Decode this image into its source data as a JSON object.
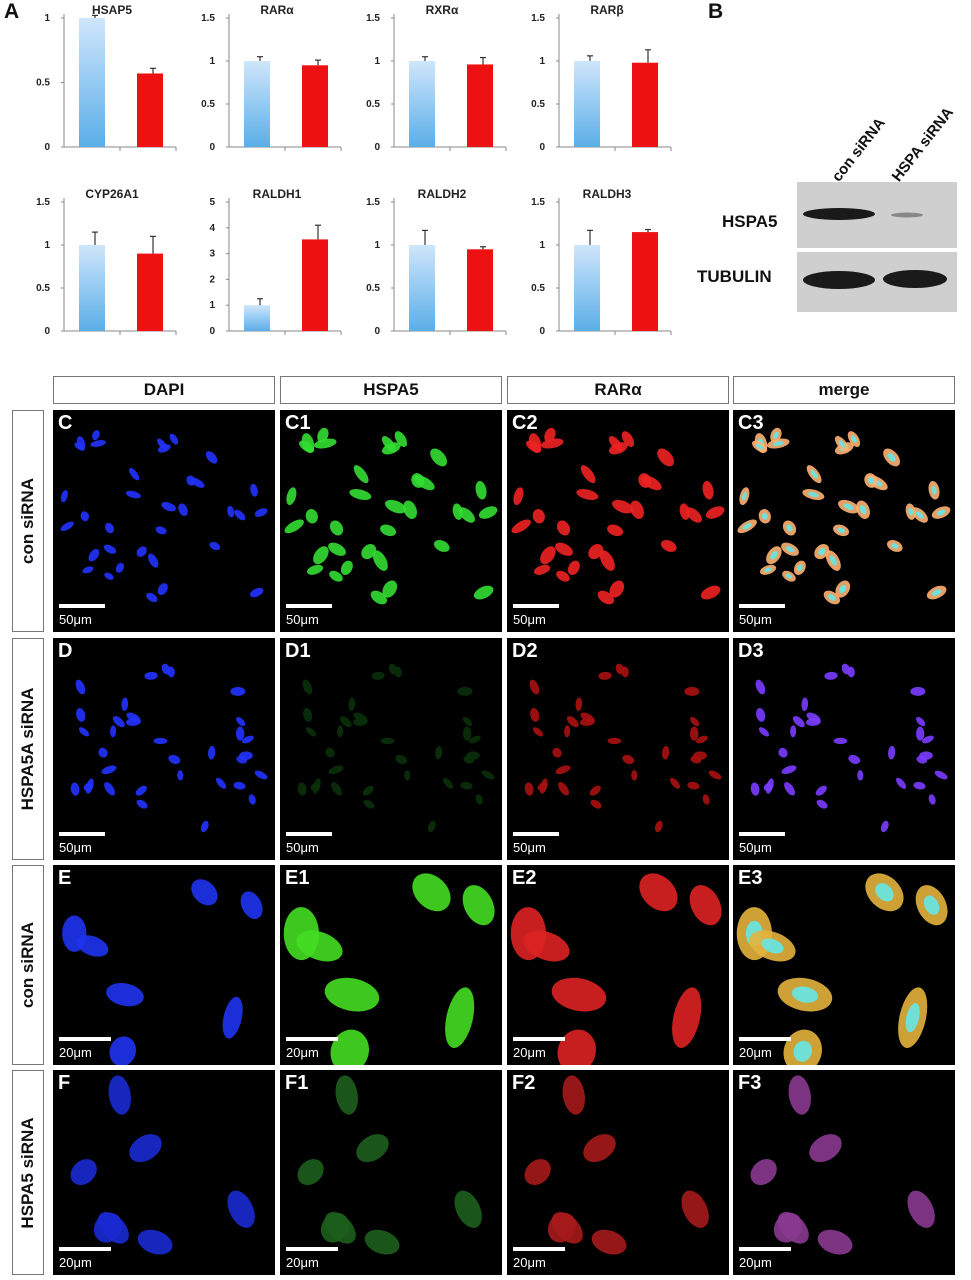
{
  "panel_letters": {
    "a": "A",
    "b": "B"
  },
  "chart_data": [
    {
      "type": "bar",
      "title": "HSAP5",
      "ylim": [
        0,
        1
      ],
      "yticks": [
        "0",
        "0.5",
        "1"
      ],
      "values": [
        1.0,
        0.57
      ],
      "errors": [
        0.02,
        0.04
      ],
      "colors": [
        "#5aaee8",
        "#ee1111"
      ]
    },
    {
      "type": "bar",
      "title": "RARα",
      "ylim": [
        0,
        1.5
      ],
      "yticks": [
        "0",
        "0.5",
        "1",
        "1.5"
      ],
      "values": [
        1.0,
        0.95
      ],
      "errors": [
        0.05,
        0.06
      ],
      "colors": [
        "#5aaee8",
        "#ee1111"
      ]
    },
    {
      "type": "bar",
      "title": "RXRα",
      "ylim": [
        0,
        1.5
      ],
      "yticks": [
        "0",
        "0.5",
        "1",
        "1.5"
      ],
      "values": [
        1.0,
        0.96
      ],
      "errors": [
        0.05,
        0.08
      ],
      "colors": [
        "#5aaee8",
        "#ee1111"
      ]
    },
    {
      "type": "bar",
      "title": "RARβ",
      "ylim": [
        0,
        1.5
      ],
      "yticks": [
        "0",
        "0.5",
        "1",
        "1.5"
      ],
      "values": [
        1.0,
        0.98
      ],
      "errors": [
        0.06,
        0.15
      ],
      "colors": [
        "#5aaee8",
        "#ee1111"
      ]
    },
    {
      "type": "bar",
      "title": "CYP26A1",
      "ylim": [
        0,
        1.5
      ],
      "yticks": [
        "0",
        "0.5",
        "1",
        "1.5"
      ],
      "values": [
        1.0,
        0.9
      ],
      "errors": [
        0.15,
        0.2
      ],
      "colors": [
        "#5aaee8",
        "#ee1111"
      ]
    },
    {
      "type": "bar",
      "title": "RALDH1",
      "ylim": [
        0,
        5
      ],
      "yticks": [
        "0",
        "1",
        "2",
        "3",
        "4",
        "5"
      ],
      "values": [
        1.0,
        3.55
      ],
      "errors": [
        0.25,
        0.55
      ],
      "colors": [
        "#5aaee8",
        "#ee1111"
      ]
    },
    {
      "type": "bar",
      "title": "RALDH2",
      "ylim": [
        0,
        1.5
      ],
      "yticks": [
        "0",
        "0.5",
        "1",
        "1.5"
      ],
      "values": [
        1.0,
        0.95
      ],
      "errors": [
        0.17,
        0.03
      ],
      "colors": [
        "#5aaee8",
        "#ee1111"
      ]
    },
    {
      "type": "bar",
      "title": "RALDH3",
      "ylim": [
        0,
        1.5
      ],
      "yticks": [
        "0",
        "0.5",
        "1",
        "1.5"
      ],
      "values": [
        1.0,
        1.15
      ],
      "errors": [
        0.17,
        0.03
      ],
      "colors": [
        "#5aaee8",
        "#ee1111"
      ]
    }
  ],
  "blot": {
    "lanes": [
      "con siRNA",
      "HSPA siRNA"
    ],
    "rows": [
      "HSPA5",
      "TUBULIN"
    ]
  },
  "columns": [
    "DAPI",
    "HSPA5",
    "RARα",
    "merge"
  ],
  "rows": [
    {
      "label": "con siRNA",
      "scale": "50μm",
      "panels": [
        "C",
        "C1",
        "C2",
        "C3"
      ]
    },
    {
      "label": "HSPA5A siRNA",
      "scale": "50μm",
      "panels": [
        "D",
        "D1",
        "D2",
        "D3"
      ]
    },
    {
      "label": "con siRNA",
      "scale": "20μm",
      "panels": [
        "E",
        "E1",
        "E2",
        "E3"
      ]
    },
    {
      "label": "HSPA5 siRNA",
      "scale": "20μm",
      "panels": [
        "F",
        "F1",
        "F2",
        "F3"
      ]
    }
  ]
}
